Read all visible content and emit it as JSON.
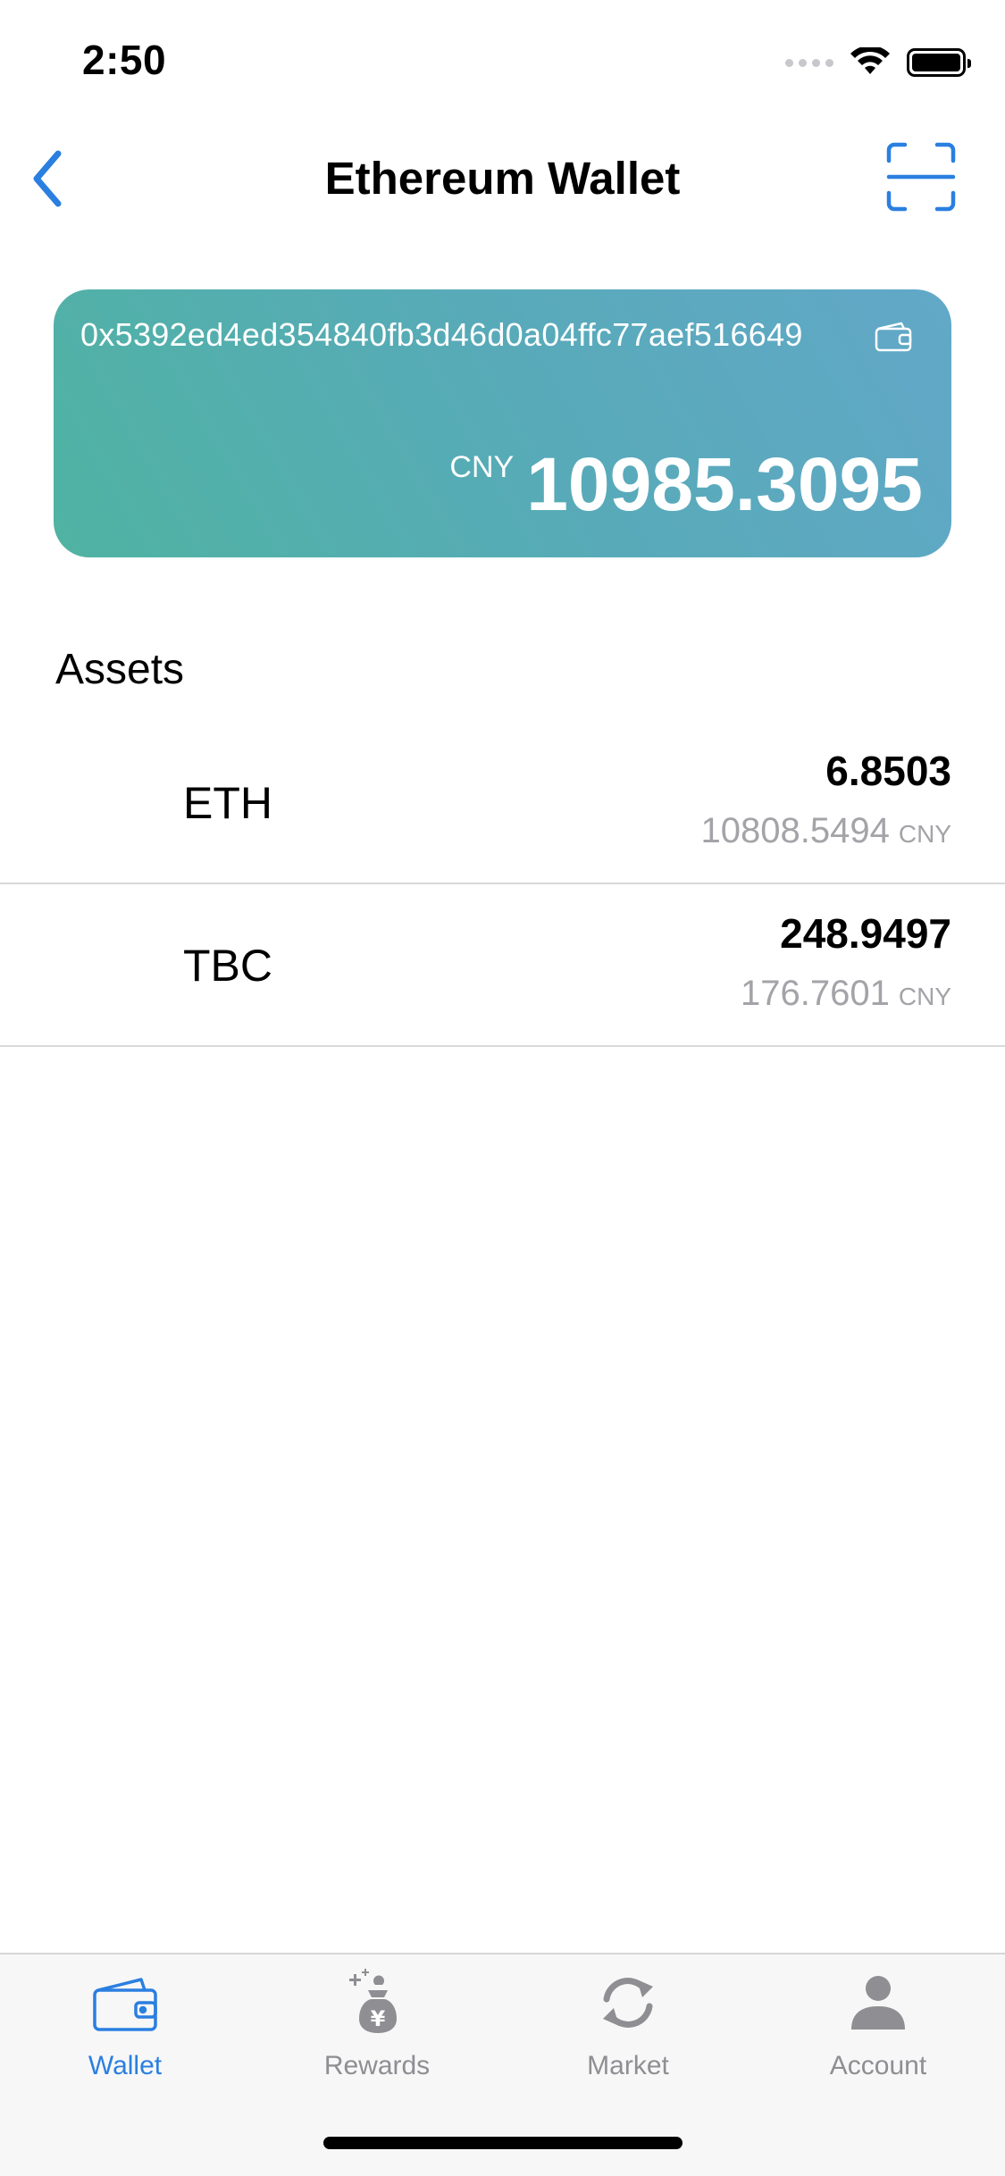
{
  "status_bar": {
    "time": "2:50"
  },
  "nav": {
    "title": "Ethereum Wallet",
    "back_icon": "chevron-left-icon",
    "scan_icon": "scan-icon"
  },
  "wallet": {
    "address": "0x5392ed4ed354840fb3d46d0a04ffc77aef516649",
    "currency": "CNY",
    "balance": "10985.3095",
    "gradient_colors": [
      "#4fb3a2",
      "#62a8c8"
    ]
  },
  "assets": {
    "title": "Assets",
    "items": [
      {
        "symbol": "ETH",
        "amount": "6.8503",
        "fiat_value": "10808.5494",
        "fiat_currency": "CNY"
      },
      {
        "symbol": "TBC",
        "amount": "248.9497",
        "fiat_value": "176.7601",
        "fiat_currency": "CNY"
      }
    ]
  },
  "tab_bar": {
    "active_color": "#2a7fe0",
    "inactive_color": "#8e8e93",
    "tabs": [
      {
        "label": "Wallet",
        "icon": "wallet-icon",
        "active": true
      },
      {
        "label": "Rewards",
        "icon": "money-bag-icon",
        "active": false
      },
      {
        "label": "Market",
        "icon": "refresh-icon",
        "active": false
      },
      {
        "label": "Account",
        "icon": "person-icon",
        "active": false
      }
    ]
  }
}
